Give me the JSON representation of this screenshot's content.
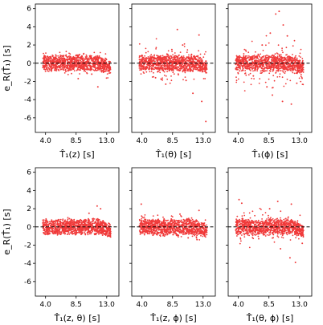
{
  "chart_data": [
    {
      "type": "scatter",
      "xlabel": "T̂₁(z) [s]",
      "ylabel": "e_R(T̂₁) [s]",
      "xticks": [
        "4.0",
        "8.5",
        "13.0"
      ],
      "yticks": [
        "6",
        "4",
        "2",
        "0",
        "-2",
        "-4",
        "-6"
      ],
      "xlim": [
        2.5,
        14.8
      ],
      "ylim": [
        -7.6,
        6.5
      ],
      "reference_line_y": 0,
      "points": [
        [
          3.8,
          0.2
        ],
        [
          5.0,
          0.3
        ],
        [
          6.5,
          -0.1
        ],
        [
          8.0,
          0.4
        ],
        [
          9.5,
          0.1
        ],
        [
          11.0,
          -0.2
        ],
        [
          12.2,
          0.3
        ],
        [
          13.0,
          -0.1
        ],
        [
          12.3,
          -0.8
        ],
        [
          10.8,
          -1.2
        ],
        [
          9.6,
          1.0
        ],
        [
          7.0,
          -0.9
        ],
        [
          11.7,
          -2.6
        ],
        [
          8.8,
          -1.7
        ],
        [
          5.5,
          0.9
        ],
        [
          13.4,
          -0.3
        ]
      ],
      "marker_color": "#f03a3a"
    },
    {
      "type": "scatter",
      "xlabel": "T̂₁(θ) [s]",
      "ylabel": "",
      "xticks": [
        "4.0",
        "8.5",
        "13.0"
      ],
      "yticks": [],
      "xlim": [
        2.5,
        14.8
      ],
      "ylim": [
        -7.6,
        6.5
      ],
      "reference_line_y": 0,
      "points": [
        [
          3.8,
          0.4
        ],
        [
          5.0,
          0.3
        ],
        [
          6.5,
          -0.2
        ],
        [
          8.0,
          0.6
        ],
        [
          9.5,
          0.1
        ],
        [
          11.0,
          -0.3
        ],
        [
          12.2,
          0.2
        ],
        [
          13.0,
          -0.2
        ],
        [
          9.2,
          3.7
        ],
        [
          12.4,
          3.1
        ],
        [
          10.0,
          2.0
        ],
        [
          7.5,
          -2.3
        ],
        [
          11.5,
          -3.3
        ],
        [
          12.8,
          -4.2
        ],
        [
          13.4,
          -6.4
        ],
        [
          6.0,
          -1.6
        ],
        [
          10.5,
          -1.9
        ],
        [
          8.4,
          1.5
        ]
      ],
      "marker_color": "#f03a3a"
    },
    {
      "type": "scatter",
      "xlabel": "T̂₁(ϕ) [s]",
      "ylabel": "",
      "xticks": [
        "4.0",
        "8.5",
        "13.0"
      ],
      "yticks": [],
      "xlim": [
        2.5,
        14.8
      ],
      "ylim": [
        -7.6,
        6.5
      ],
      "reference_line_y": 0,
      "points": [
        [
          3.8,
          0.5
        ],
        [
          5.0,
          0.4
        ],
        [
          6.5,
          -0.3
        ],
        [
          8.0,
          0.8
        ],
        [
          9.5,
          0.2
        ],
        [
          11.0,
          -0.4
        ],
        [
          12.2,
          0.3
        ],
        [
          13.0,
          -0.3
        ],
        [
          10.0,
          5.7
        ],
        [
          9.5,
          5.4
        ],
        [
          10.6,
          4.2
        ],
        [
          8.7,
          3.3
        ],
        [
          11.2,
          3.0
        ],
        [
          7.5,
          2.0
        ],
        [
          9.0,
          -3.5
        ],
        [
          10.5,
          -4.2
        ],
        [
          11.8,
          -4.5
        ],
        [
          8.2,
          -2.6
        ],
        [
          6.2,
          -1.4
        ],
        [
          12.6,
          -2.2
        ]
      ],
      "marker_color": "#f03a3a"
    },
    {
      "type": "scatter",
      "xlabel": "T̂₁(z, θ) [s]",
      "ylabel": "e_R(T̂₁) [s]",
      "xticks": [
        "4.0",
        "8.5",
        "13.0"
      ],
      "yticks": [
        "6",
        "4",
        "2",
        "0",
        "-2",
        "-4",
        "-6"
      ],
      "xlim": [
        2.5,
        14.8
      ],
      "ylim": [
        -7.6,
        6.5
      ],
      "reference_line_y": 0,
      "points": [
        [
          3.8,
          0.2
        ],
        [
          5.0,
          0.2
        ],
        [
          6.5,
          -0.1
        ],
        [
          8.0,
          0.3
        ],
        [
          9.5,
          0.1
        ],
        [
          11.0,
          -0.2
        ],
        [
          12.2,
          0.2
        ],
        [
          13.0,
          -0.1
        ],
        [
          11.6,
          2.3
        ],
        [
          12.1,
          2.0
        ],
        [
          10.4,
          1.5
        ],
        [
          12.4,
          -0.9
        ],
        [
          7.5,
          0.9
        ],
        [
          13.3,
          0.4
        ]
      ],
      "marker_color": "#f03a3a"
    },
    {
      "type": "scatter",
      "xlabel": "T̂₁(z, ϕ) [s]",
      "ylabel": "",
      "xticks": [
        "4.0",
        "8.5",
        "13.0"
      ],
      "yticks": [],
      "xlim": [
        2.5,
        14.8
      ],
      "ylim": [
        -7.6,
        6.5
      ],
      "reference_line_y": 0,
      "points": [
        [
          3.8,
          0.3
        ],
        [
          5.0,
          0.3
        ],
        [
          6.5,
          -0.2
        ],
        [
          8.0,
          0.4
        ],
        [
          9.5,
          0.1
        ],
        [
          11.0,
          -0.3
        ],
        [
          12.2,
          0.2
        ],
        [
          13.0,
          -0.1
        ],
        [
          3.9,
          2.5
        ],
        [
          12.4,
          1.8
        ],
        [
          9.6,
          1.4
        ],
        [
          12.1,
          -1.4
        ],
        [
          10.8,
          -1.2
        ],
        [
          7.2,
          -0.9
        ]
      ],
      "marker_color": "#f03a3a"
    },
    {
      "type": "scatter",
      "xlabel": "T̂₁(θ, ϕ) [s]",
      "ylabel": "",
      "xticks": [
        "4.0",
        "8.5",
        "13.0"
      ],
      "yticks": [],
      "xlim": [
        2.5,
        14.8
      ],
      "ylim": [
        -7.6,
        6.5
      ],
      "reference_line_y": 0,
      "points": [
        [
          3.8,
          0.4
        ],
        [
          5.0,
          0.4
        ],
        [
          6.5,
          -0.2
        ],
        [
          8.0,
          0.6
        ],
        [
          9.5,
          0.2
        ],
        [
          11.0,
          -0.4
        ],
        [
          12.2,
          0.3
        ],
        [
          13.0,
          -0.2
        ],
        [
          4.1,
          3.0
        ],
        [
          4.5,
          2.6
        ],
        [
          9.8,
          2.8
        ],
        [
          11.8,
          2.5
        ],
        [
          8.6,
          2.0
        ],
        [
          11.6,
          -3.4
        ],
        [
          10.2,
          -2.4
        ],
        [
          12.4,
          -3.9
        ],
        [
          13.4,
          -1.8
        ],
        [
          7.0,
          -1.3
        ]
      ],
      "marker_color": "#f03a3a"
    }
  ]
}
